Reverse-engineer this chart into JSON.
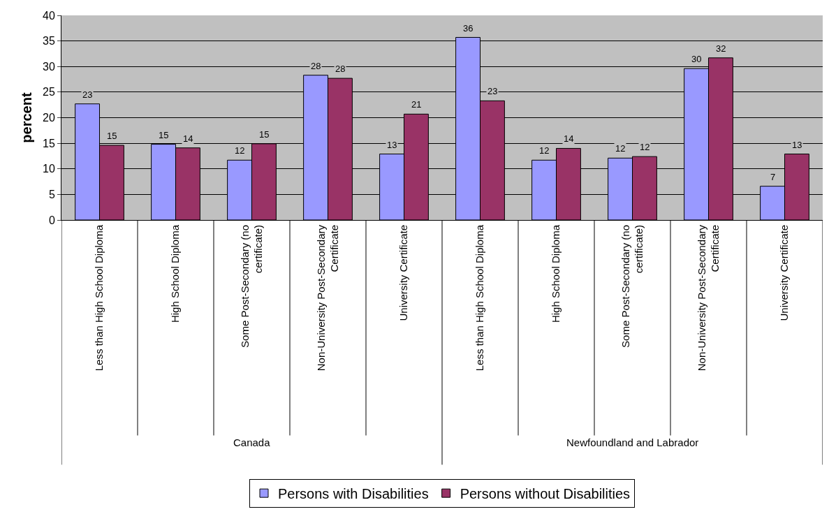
{
  "chart_data": {
    "type": "bar",
    "ylabel": "percent",
    "categories": [
      "Less than High School Diploma",
      "High School Diploma",
      "Some Post-Secondary (no certificate)",
      "Non-University Post-Secondary Certificate",
      "University Certificate",
      "Less than High School Diploma",
      "High School Diploma",
      "Some Post-Secondary (no certificate)",
      "Non-University Post-Secondary Certificate",
      "University Certificate"
    ],
    "series": [
      {
        "name": "Persons with Disabilities",
        "color": "#9999ff",
        "values": [
          22.7,
          14.8,
          11.7,
          28.3,
          12.9,
          35.7,
          11.7,
          12.1,
          29.6,
          6.6
        ],
        "value_labels": [
          "23",
          "15",
          "12",
          "28",
          "13",
          "36",
          "12",
          "12",
          "30",
          "7"
        ]
      },
      {
        "name": "Persons without Disabilities",
        "color": "#993366",
        "values": [
          14.6,
          14.1,
          14.9,
          27.7,
          20.7,
          23.3,
          14.0,
          12.4,
          31.7,
          12.9
        ],
        "value_labels": [
          "15",
          "14",
          "15",
          "28",
          "21",
          "23",
          "14",
          "12",
          "32",
          "13"
        ]
      }
    ],
    "annotations": [
      "Canada",
      "Newfoundland and Labrador"
    ],
    "ylim": [
      0,
      40
    ],
    "yticks": [
      0,
      5,
      10,
      15,
      20,
      25,
      30,
      35,
      40
    ],
    "grid": "y",
    "legend": "bottom"
  }
}
